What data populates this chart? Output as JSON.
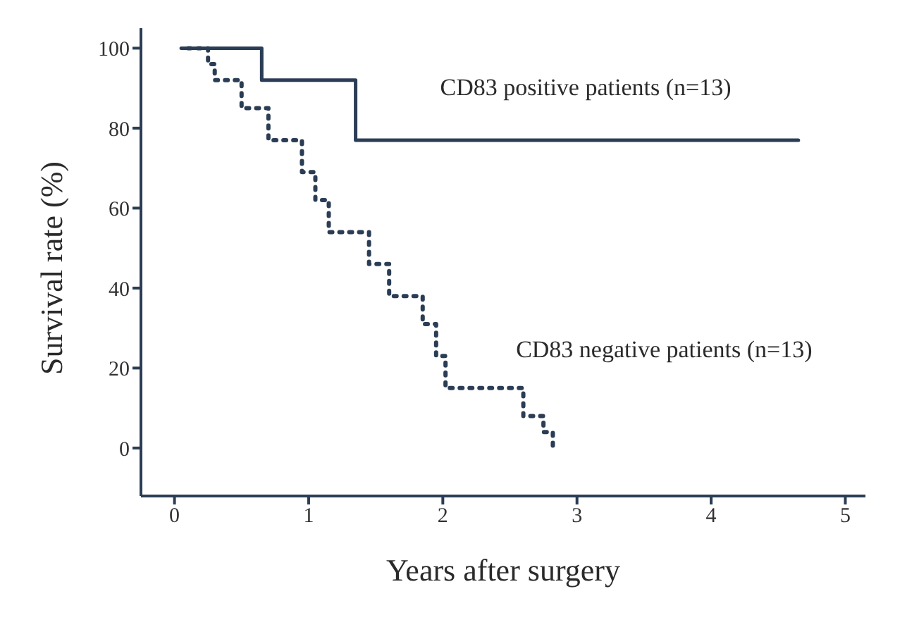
{
  "chart_data": {
    "type": "step",
    "xlabel": "Years after surgery",
    "ylabel": "Survival rate (%)",
    "xlim": [
      -0.25,
      5.15
    ],
    "ylim": [
      -12,
      105
    ],
    "xticks": [
      0,
      1,
      2,
      3,
      4,
      5
    ],
    "yticks": [
      0,
      20,
      40,
      60,
      80,
      100
    ],
    "marker": "none",
    "series": [
      {
        "name": "CD83 positive patients (n=13)",
        "color": "#2b3d55",
        "line_style": "solid",
        "x": [
          0.05,
          0.65,
          1.35,
          4.65
        ],
        "values": [
          100,
          92,
          77,
          77
        ]
      },
      {
        "name": "CD83 negative patients (n=13)",
        "color": "#2b3d55",
        "line_style": "dotted",
        "x": [
          0.1,
          0.25,
          0.3,
          0.5,
          0.7,
          0.95,
          1.05,
          1.15,
          1.45,
          1.6,
          1.85,
          1.95,
          2.02,
          2.6,
          2.75,
          2.82
        ],
        "values": [
          100,
          96,
          92,
          85,
          77,
          69,
          62,
          54,
          46,
          38,
          31,
          23,
          15,
          8,
          4,
          0
        ]
      }
    ]
  }
}
